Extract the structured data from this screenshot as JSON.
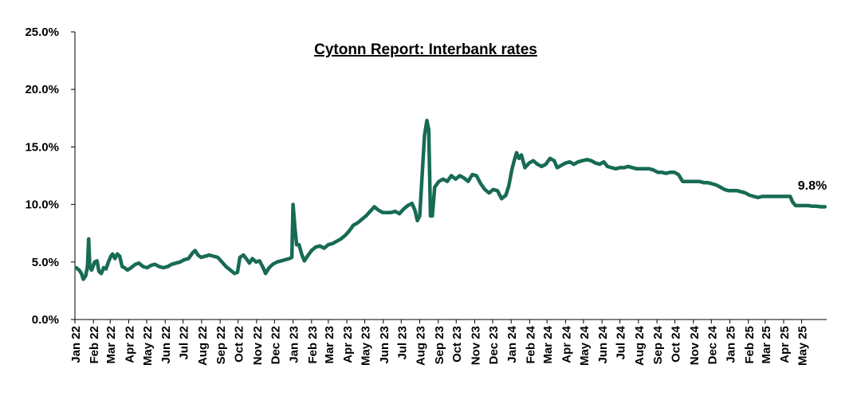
{
  "chart_data": {
    "type": "line",
    "title": "Cytonn Report: Interbank rates",
    "xlabel": "",
    "ylabel": "",
    "ylim": [
      0,
      25
    ],
    "grid": false,
    "y_ticks": [
      "0.0%",
      "5.0%",
      "10.0%",
      "15.0%",
      "20.0%",
      "25.0%"
    ],
    "x_ticks": [
      "Jan 22",
      "Feb 22",
      "Mar 22",
      "Apr 22",
      "May 22",
      "Jun 22",
      "Jul 22",
      "Aug 22",
      "Sep 22",
      "Oct 22",
      "Nov 22",
      "Dec 22",
      "Jan 23",
      "Feb 23",
      "Mar 23",
      "Apr 23",
      "May 23",
      "Jun 23",
      "Jul 23",
      "Aug 23",
      "Sep 23",
      "Oct 23",
      "Nov 23",
      "Dec 23",
      "Jan 24",
      "Feb 24",
      "Mar 24",
      "Apr 24",
      "May 24",
      "Jun 24",
      "Jul 24",
      "Aug 24",
      "Sep 24",
      "Oct 24",
      "Nov 24",
      "Dec 24",
      "Jan 25",
      "Feb 25",
      "Mar 25",
      "Apr 25",
      "May 25"
    ],
    "line_color": "#176B54",
    "annotation": "9.8%",
    "series": [
      {
        "name": "",
        "points": [
          [
            "2022-01-03",
            4.5
          ],
          [
            "2022-01-08",
            4.3
          ],
          [
            "2022-01-12",
            4.0
          ],
          [
            "2022-01-15",
            3.5
          ],
          [
            "2022-01-19",
            3.8
          ],
          [
            "2022-01-22",
            4.6
          ],
          [
            "2022-01-24",
            7.0
          ],
          [
            "2022-01-26",
            4.5
          ],
          [
            "2022-01-29",
            4.3
          ],
          [
            "2022-02-03",
            5.0
          ],
          [
            "2022-02-07",
            5.1
          ],
          [
            "2022-02-10",
            4.2
          ],
          [
            "2022-02-14",
            4.0
          ],
          [
            "2022-02-18",
            4.5
          ],
          [
            "2022-02-22",
            4.4
          ],
          [
            "2022-02-26",
            5.0
          ],
          [
            "2022-03-02",
            5.5
          ],
          [
            "2022-03-05",
            5.7
          ],
          [
            "2022-03-09",
            5.3
          ],
          [
            "2022-03-13",
            5.7
          ],
          [
            "2022-03-17",
            5.5
          ],
          [
            "2022-03-21",
            4.6
          ],
          [
            "2022-03-25",
            4.5
          ],
          [
            "2022-03-30",
            4.3
          ],
          [
            "2022-04-05",
            4.5
          ],
          [
            "2022-04-12",
            4.8
          ],
          [
            "2022-04-18",
            4.9
          ],
          [
            "2022-04-25",
            4.6
          ],
          [
            "2022-05-02",
            4.5
          ],
          [
            "2022-05-08",
            4.7
          ],
          [
            "2022-05-15",
            4.8
          ],
          [
            "2022-05-22",
            4.6
          ],
          [
            "2022-05-29",
            4.5
          ],
          [
            "2022-06-05",
            4.6
          ],
          [
            "2022-06-12",
            4.8
          ],
          [
            "2022-06-19",
            4.9
          ],
          [
            "2022-06-26",
            5.0
          ],
          [
            "2022-07-03",
            5.2
          ],
          [
            "2022-07-10",
            5.3
          ],
          [
            "2022-07-17",
            5.8
          ],
          [
            "2022-07-21",
            6.0
          ],
          [
            "2022-07-26",
            5.6
          ],
          [
            "2022-07-31",
            5.4
          ],
          [
            "2022-08-07",
            5.5
          ],
          [
            "2022-08-14",
            5.6
          ],
          [
            "2022-08-21",
            5.5
          ],
          [
            "2022-08-28",
            5.4
          ],
          [
            "2022-09-04",
            5.0
          ],
          [
            "2022-09-11",
            4.6
          ],
          [
            "2022-09-18",
            4.3
          ],
          [
            "2022-09-25",
            4.0
          ],
          [
            "2022-09-30",
            4.1
          ],
          [
            "2022-10-04",
            5.4
          ],
          [
            "2022-10-10",
            5.6
          ],
          [
            "2022-10-16",
            5.2
          ],
          [
            "2022-10-20",
            4.9
          ],
          [
            "2022-10-25",
            5.3
          ],
          [
            "2022-10-31",
            5.0
          ],
          [
            "2022-11-06",
            5.1
          ],
          [
            "2022-11-12",
            4.5
          ],
          [
            "2022-11-16",
            4.0
          ],
          [
            "2022-11-22",
            4.5
          ],
          [
            "2022-11-28",
            4.8
          ],
          [
            "2022-12-05",
            5.0
          ],
          [
            "2022-12-12",
            5.1
          ],
          [
            "2022-12-19",
            5.2
          ],
          [
            "2022-12-26",
            5.3
          ],
          [
            "2022-12-30",
            5.4
          ],
          [
            "2023-01-01",
            10.0
          ],
          [
            "2023-01-04",
            8.0
          ],
          [
            "2023-01-07",
            6.5
          ],
          [
            "2023-01-11",
            6.5
          ],
          [
            "2023-01-16",
            5.6
          ],
          [
            "2023-01-20",
            5.1
          ],
          [
            "2023-01-25",
            5.5
          ],
          [
            "2023-02-01",
            6.0
          ],
          [
            "2023-02-08",
            6.3
          ],
          [
            "2023-02-15",
            6.4
          ],
          [
            "2023-02-22",
            6.2
          ],
          [
            "2023-03-01",
            6.5
          ],
          [
            "2023-03-08",
            6.6
          ],
          [
            "2023-03-15",
            6.8
          ],
          [
            "2023-03-22",
            7.0
          ],
          [
            "2023-03-29",
            7.3
          ],
          [
            "2023-04-05",
            7.7
          ],
          [
            "2023-04-12",
            8.2
          ],
          [
            "2023-04-19",
            8.4
          ],
          [
            "2023-04-26",
            8.7
          ],
          [
            "2023-05-03",
            9.0
          ],
          [
            "2023-05-10",
            9.4
          ],
          [
            "2023-05-17",
            9.8
          ],
          [
            "2023-05-24",
            9.5
          ],
          [
            "2023-05-31",
            9.3
          ],
          [
            "2023-06-07",
            9.3
          ],
          [
            "2023-06-14",
            9.3
          ],
          [
            "2023-06-21",
            9.4
          ],
          [
            "2023-06-28",
            9.2
          ],
          [
            "2023-07-05",
            9.6
          ],
          [
            "2023-07-12",
            9.9
          ],
          [
            "2023-07-19",
            10.1
          ],
          [
            "2023-07-24",
            9.5
          ],
          [
            "2023-07-28",
            8.6
          ],
          [
            "2023-08-01",
            9.0
          ],
          [
            "2023-08-05",
            12.5
          ],
          [
            "2023-08-09",
            16.0
          ],
          [
            "2023-08-13",
            17.3
          ],
          [
            "2023-08-16",
            16.5
          ],
          [
            "2023-08-19",
            9.0
          ],
          [
            "2023-08-22",
            9.0
          ],
          [
            "2023-08-26",
            11.5
          ],
          [
            "2023-09-02",
            12.0
          ],
          [
            "2023-09-09",
            12.2
          ],
          [
            "2023-09-16",
            12.0
          ],
          [
            "2023-09-23",
            12.5
          ],
          [
            "2023-09-30",
            12.2
          ],
          [
            "2023-10-07",
            12.5
          ],
          [
            "2023-10-14",
            12.3
          ],
          [
            "2023-10-21",
            12.0
          ],
          [
            "2023-10-28",
            12.6
          ],
          [
            "2023-11-04",
            12.5
          ],
          [
            "2023-11-11",
            11.8
          ],
          [
            "2023-11-18",
            11.3
          ],
          [
            "2023-11-25",
            11.0
          ],
          [
            "2023-12-02",
            11.3
          ],
          [
            "2023-12-09",
            11.2
          ],
          [
            "2023-12-16",
            10.5
          ],
          [
            "2023-12-23",
            10.8
          ],
          [
            "2023-12-28",
            11.6
          ],
          [
            "2024-01-02",
            13.0
          ],
          [
            "2024-01-06",
            13.8
          ],
          [
            "2024-01-10",
            14.5
          ],
          [
            "2024-01-14",
            14.0
          ],
          [
            "2024-01-18",
            14.3
          ],
          [
            "2024-01-24",
            13.2
          ],
          [
            "2024-01-31",
            13.6
          ],
          [
            "2024-02-07",
            13.8
          ],
          [
            "2024-02-14",
            13.5
          ],
          [
            "2024-02-21",
            13.3
          ],
          [
            "2024-02-28",
            13.5
          ],
          [
            "2024-03-06",
            14.0
          ],
          [
            "2024-03-13",
            13.8
          ],
          [
            "2024-03-18",
            13.2
          ],
          [
            "2024-03-25",
            13.4
          ],
          [
            "2024-04-01",
            13.6
          ],
          [
            "2024-04-08",
            13.7
          ],
          [
            "2024-04-15",
            13.5
          ],
          [
            "2024-04-22",
            13.7
          ],
          [
            "2024-04-29",
            13.8
          ],
          [
            "2024-05-07",
            13.9
          ],
          [
            "2024-05-14",
            13.8
          ],
          [
            "2024-05-21",
            13.6
          ],
          [
            "2024-05-28",
            13.5
          ],
          [
            "2024-06-04",
            13.7
          ],
          [
            "2024-06-10",
            13.3
          ],
          [
            "2024-06-17",
            13.2
          ],
          [
            "2024-06-24",
            13.1
          ],
          [
            "2024-07-01",
            13.2
          ],
          [
            "2024-07-08",
            13.2
          ],
          [
            "2024-07-15",
            13.3
          ],
          [
            "2024-07-22",
            13.2
          ],
          [
            "2024-07-29",
            13.1
          ],
          [
            "2024-08-05",
            13.1
          ],
          [
            "2024-08-12",
            13.1
          ],
          [
            "2024-08-19",
            13.1
          ],
          [
            "2024-08-26",
            13.0
          ],
          [
            "2024-09-02",
            12.8
          ],
          [
            "2024-09-09",
            12.8
          ],
          [
            "2024-09-16",
            12.7
          ],
          [
            "2024-09-23",
            12.8
          ],
          [
            "2024-09-30",
            12.8
          ],
          [
            "2024-10-07",
            12.6
          ],
          [
            "2024-10-14",
            12.0
          ],
          [
            "2024-10-21",
            12.0
          ],
          [
            "2024-10-28",
            12.0
          ],
          [
            "2024-11-04",
            12.0
          ],
          [
            "2024-11-11",
            12.0
          ],
          [
            "2024-11-18",
            11.9
          ],
          [
            "2024-11-25",
            11.9
          ],
          [
            "2024-12-02",
            11.8
          ],
          [
            "2024-12-09",
            11.7
          ],
          [
            "2024-12-16",
            11.5
          ],
          [
            "2024-12-23",
            11.3
          ],
          [
            "2024-12-30",
            11.2
          ],
          [
            "2025-01-06",
            11.2
          ],
          [
            "2025-01-13",
            11.2
          ],
          [
            "2025-01-20",
            11.1
          ],
          [
            "2025-01-27",
            11.0
          ],
          [
            "2025-02-03",
            10.8
          ],
          [
            "2025-02-10",
            10.7
          ],
          [
            "2025-02-17",
            10.6
          ],
          [
            "2025-02-24",
            10.7
          ],
          [
            "2025-03-03",
            10.7
          ],
          [
            "2025-03-10",
            10.7
          ],
          [
            "2025-03-17",
            10.7
          ],
          [
            "2025-03-24",
            10.7
          ],
          [
            "2025-03-31",
            10.7
          ],
          [
            "2025-04-07",
            10.7
          ],
          [
            "2025-04-12",
            10.7
          ],
          [
            "2025-04-16",
            10.2
          ],
          [
            "2025-04-21",
            9.9
          ],
          [
            "2025-04-28",
            9.9
          ],
          [
            "2025-05-05",
            9.9
          ],
          [
            "2025-05-12",
            9.9
          ],
          [
            "2025-05-19",
            9.85
          ],
          [
            "2025-05-26",
            9.85
          ],
          [
            "2025-06-02",
            9.8
          ],
          [
            "2025-06-09",
            9.8
          ]
        ]
      }
    ]
  }
}
